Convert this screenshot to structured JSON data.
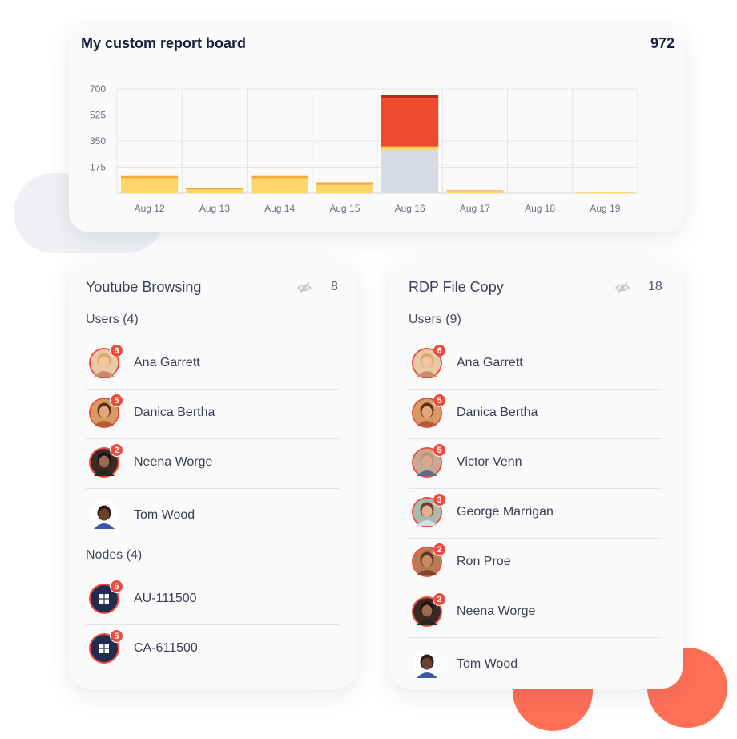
{
  "report": {
    "title": "My custom report board",
    "total": "972"
  },
  "chart_data": {
    "type": "bar",
    "stacked": true,
    "categories": [
      "Aug 12",
      "Aug 13",
      "Aug 14",
      "Aug 15",
      "Aug 16",
      "Aug 17",
      "Aug 18",
      "Aug 19"
    ],
    "y_ticks": [
      "700",
      "525",
      "350",
      "175"
    ],
    "ylim": [
      0,
      700
    ],
    "grid": true,
    "series": [
      {
        "color": "#d8dae3",
        "values": [
          0,
          0,
          0,
          0,
          290,
          0,
          0,
          0
        ]
      },
      {
        "color": "#fdd66a",
        "values": [
          100,
          25,
          100,
          55,
          15,
          15,
          0,
          8
        ]
      },
      {
        "color": "#f5a93a",
        "values": [
          20,
          12,
          20,
          18,
          10,
          5,
          0,
          2
        ]
      },
      {
        "color": "#ef4a2e",
        "values": [
          0,
          0,
          0,
          0,
          325,
          0,
          0,
          0
        ]
      },
      {
        "color": "#bd2a12",
        "values": [
          0,
          0,
          0,
          0,
          20,
          0,
          0,
          0
        ]
      }
    ]
  },
  "panelA": {
    "title": "Youtube Browsing",
    "count": "8",
    "users_header": "Users (4)",
    "users": [
      {
        "name": "Ana Garrett",
        "badge": "6",
        "avatar": "woman-blonde-icon"
      },
      {
        "name": "Danica Bertha",
        "badge": "5",
        "avatar": "woman-brunette-icon"
      },
      {
        "name": "Neena Worge",
        "badge": "2",
        "avatar": "woman-dark-hair-icon"
      },
      {
        "name": "Tom Wood",
        "badge": "",
        "avatar": "man-dark-skin-icon"
      }
    ],
    "nodes_header": "Nodes (4)",
    "nodes": [
      {
        "name": "AU-111500",
        "badge": "6",
        "icon": "windows-icon"
      },
      {
        "name": "CA-611500",
        "badge": "5",
        "icon": "windows-icon"
      }
    ]
  },
  "panelB": {
    "title": "RDP File Copy",
    "count": "18",
    "users_header": "Users (9)",
    "users": [
      {
        "name": "Ana Garrett",
        "badge": "6",
        "avatar": "woman-blonde-icon"
      },
      {
        "name": "Danica Bertha",
        "badge": "5",
        "avatar": "woman-brunette-icon"
      },
      {
        "name": "Victor Venn",
        "badge": "5",
        "avatar": "man-bald-icon"
      },
      {
        "name": "George Marrigan",
        "badge": "3",
        "avatar": "man-brown-hair-icon"
      },
      {
        "name": "Ron Proe",
        "badge": "2",
        "avatar": "man-beard-icon"
      },
      {
        "name": "Neena Worge",
        "badge": "2",
        "avatar": "woman-dark-hair-icon"
      },
      {
        "name": "Tom Wood",
        "badge": "",
        "avatar": "man-dark-skin-icon"
      }
    ]
  },
  "colors": {
    "accent": "#f04a3e",
    "blob_orange": "#ff7057",
    "node_icon_bg": "#232a4f"
  }
}
